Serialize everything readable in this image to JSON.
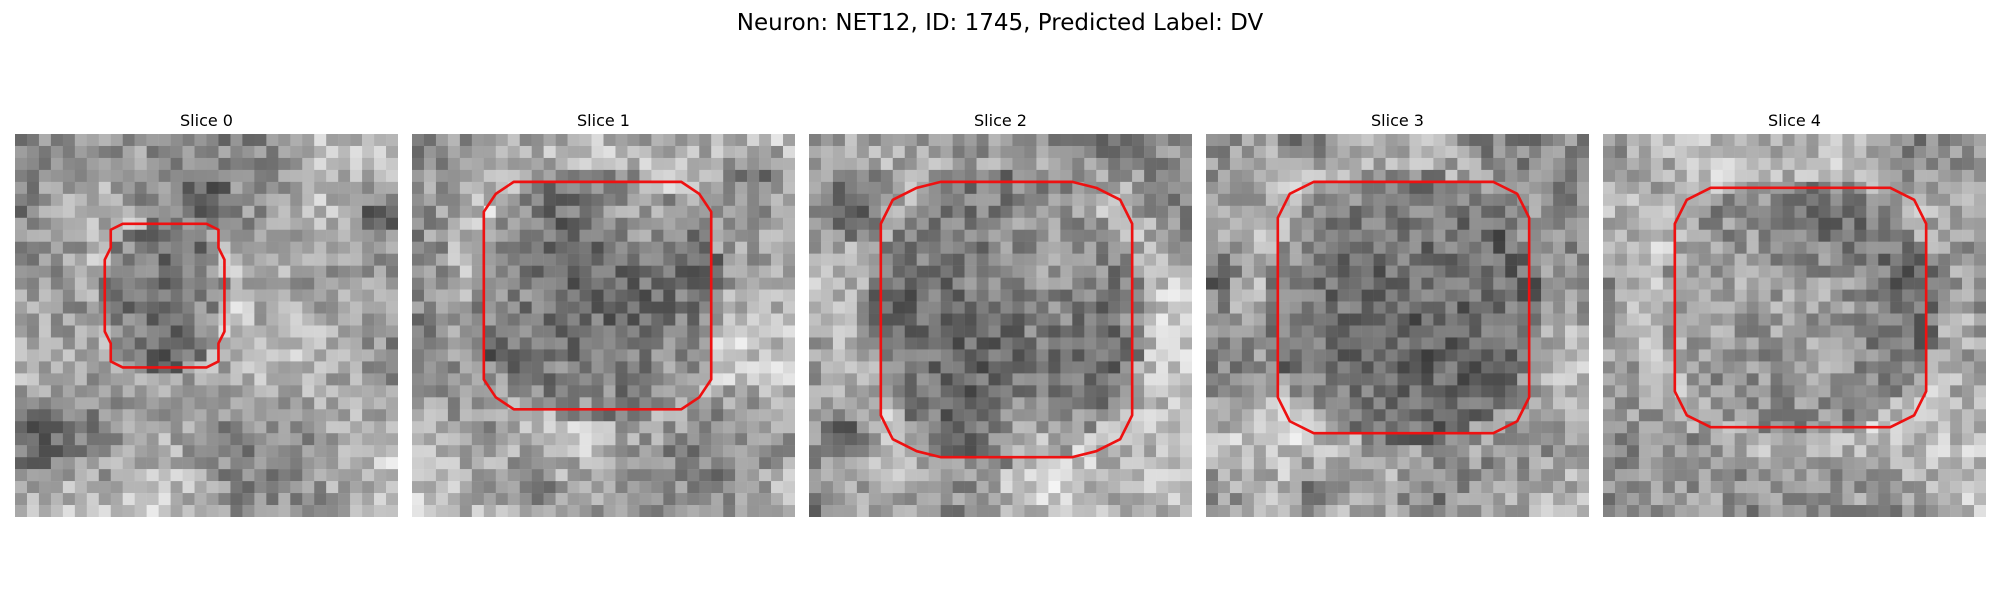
{
  "figure": {
    "title": "Neuron: NET12, ID: 1745, Predicted Label: DV",
    "contour_color": "#ee1111"
  },
  "slices": [
    {
      "title": "Slice 0"
    },
    {
      "title": "Slice 1"
    },
    {
      "title": "Slice 2"
    },
    {
      "title": "Slice 3"
    },
    {
      "title": "Slice 4"
    }
  ]
}
